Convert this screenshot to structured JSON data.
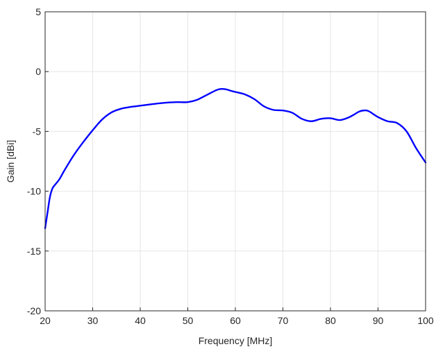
{
  "chart_data": {
    "type": "line",
    "title": "",
    "xlabel": "Frequency [MHz]",
    "ylabel": "Gain [dBi]",
    "xlim": [
      20,
      100
    ],
    "ylim": [
      -20,
      5
    ],
    "xticks": [
      20,
      30,
      40,
      50,
      60,
      70,
      80,
      90,
      100
    ],
    "yticks": [
      5,
      0,
      -5,
      -10,
      -15,
      -20
    ],
    "grid": true,
    "legend": "none",
    "series": [
      {
        "color": "#0000ff",
        "x": [
          20,
          20.5,
          21,
          21.5,
          22,
          23,
          24,
          26,
          28,
          30,
          32,
          34,
          36,
          38,
          40,
          42,
          44,
          46,
          48,
          50,
          52,
          54,
          56,
          57,
          58,
          59,
          60,
          62,
          64,
          66,
          68,
          70,
          72,
          74,
          76,
          78,
          80,
          82,
          84,
          86,
          87,
          88,
          90,
          92,
          94,
          96,
          98,
          100
        ],
        "y": [
          -13.1,
          -11.8,
          -10.5,
          -9.8,
          -9.5,
          -9.0,
          -8.3,
          -7.0,
          -5.9,
          -4.9,
          -4.0,
          -3.4,
          -3.1,
          -2.95,
          -2.85,
          -2.75,
          -2.65,
          -2.58,
          -2.55,
          -2.55,
          -2.35,
          -1.95,
          -1.55,
          -1.45,
          -1.48,
          -1.6,
          -1.7,
          -1.9,
          -2.3,
          -2.9,
          -3.2,
          -3.25,
          -3.45,
          -3.95,
          -4.15,
          -3.95,
          -3.9,
          -4.05,
          -3.8,
          -3.35,
          -3.25,
          -3.3,
          -3.8,
          -4.15,
          -4.3,
          -5.0,
          -6.4,
          -7.6
        ]
      }
    ]
  }
}
